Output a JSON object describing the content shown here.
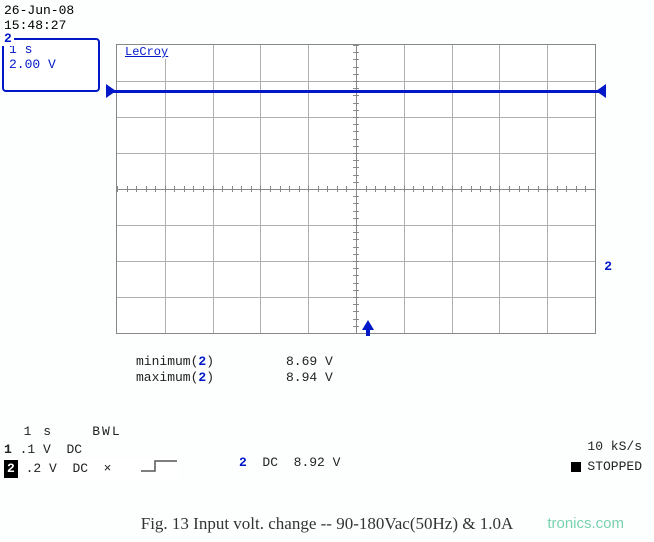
{
  "datetime": {
    "date": "26-Jun-08",
    "time": "15:48:27"
  },
  "channel_box": {
    "num": "2",
    "timebase": "1 s",
    "vdiv": "2.00 V"
  },
  "scope": {
    "brand": "LeCroy",
    "grid_cols": 10,
    "grid_rows": 8,
    "grid_color": "#b0b0b0",
    "trace_color": "#0018c8",
    "trace_y_div_from_top": 1.25,
    "side_marker_label": "2"
  },
  "measurements": [
    {
      "label": "minimum(",
      "ch": "2",
      "label2": ")",
      "value": "8.69 V"
    },
    {
      "label": "maximum(",
      "ch": "2",
      "label2": ")",
      "value": "8.94 V"
    }
  ],
  "ch_header": {
    "timebase_unit": "1  s",
    "bwl": "BWL"
  },
  "ch1": {
    "num": "1",
    "vdiv": ".1  V",
    "coupling": "DC"
  },
  "ch2": {
    "num": "2",
    "vdiv": ".2  V",
    "coupling": "DC",
    "xmark": "×"
  },
  "trigger": {
    "ch": "2",
    "coupling": "DC",
    "level": "8.92 V"
  },
  "sample_rate": "10 kS/s",
  "status": "STOPPED",
  "caption": "Fig. 13  Input volt. change  -- 90-180Vac(50Hz)  &  1.0A",
  "watermark": "tronics.com"
}
